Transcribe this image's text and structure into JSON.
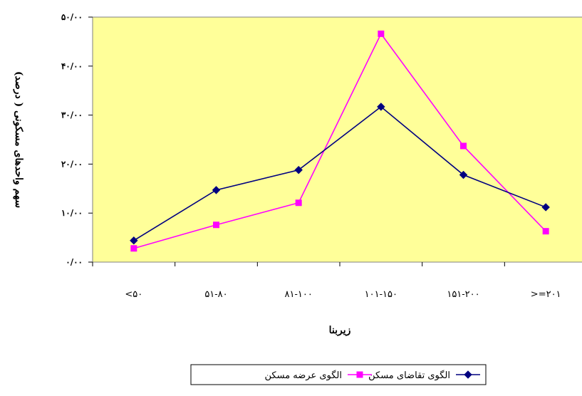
{
  "chart_data": {
    "type": "line",
    "xlabel": "زیربنا",
    "ylabel": "سهم واحدهای مسکونی ( درصد)",
    "ylim": [
      0,
      50
    ],
    "y_ticks": [
      "۰/۰۰",
      "۱۰/۰۰",
      "۲۰/۰۰",
      "۳۰/۰۰",
      "۴۰/۰۰",
      "۵۰/۰۰"
    ],
    "y_tick_values": [
      0,
      10,
      20,
      30,
      40,
      50
    ],
    "categories": [
      "<۵۰",
      "۵۱-۸۰",
      "۸۱-۱۰۰",
      "۱۰۱-۱۵۰",
      "۱۵۱-۲۰۰",
      ">=۲۰۱"
    ],
    "grid": false,
    "plot_background": "#FFFF99",
    "legend_position": "bottom",
    "series": [
      {
        "name": "الگوی تقاضای مسکن",
        "color": "#000080",
        "marker": "diamond",
        "values": [
          4.4,
          14.7,
          18.8,
          31.7,
          17.8,
          11.2
        ]
      },
      {
        "name": "الگوی عرضه مسکن",
        "color": "#FF00FF",
        "marker": "square",
        "values": [
          2.8,
          7.6,
          12.1,
          46.6,
          23.7,
          6.3
        ]
      }
    ]
  }
}
